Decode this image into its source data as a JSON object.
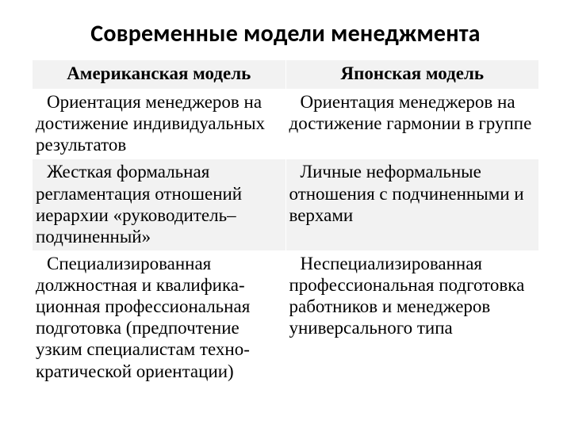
{
  "title": "Современные модели менеджмента",
  "table": {
    "type": "table",
    "header_bg": "#f2f2f2",
    "row_bg_band": "#f2f2f2",
    "row_bg_alt": "#ffffff",
    "text_color": "#000000",
    "columns": [
      {
        "label": "Американская модель"
      },
      {
        "label": "Японская модель"
      }
    ],
    "rows": [
      [
        "Ориентация менеджеров на достижение индивидуальных результатов",
        "Ориентация менеджеров на достижение гармонии в группе"
      ],
      [
        "Жесткая формальная регламентация отношений иерархии «руководитель–подчиненный»",
        "Личные неформальные отношения с подчиненными и верхами"
      ],
      [
        "Специализированная должностная и квалифика-ционная профессиональная подготовка (предпочтение узким специалистам техно-кратической ориентации)",
        "Неспециализированная профессиональная подготовка работников и менеджеров универсального типа"
      ]
    ]
  }
}
